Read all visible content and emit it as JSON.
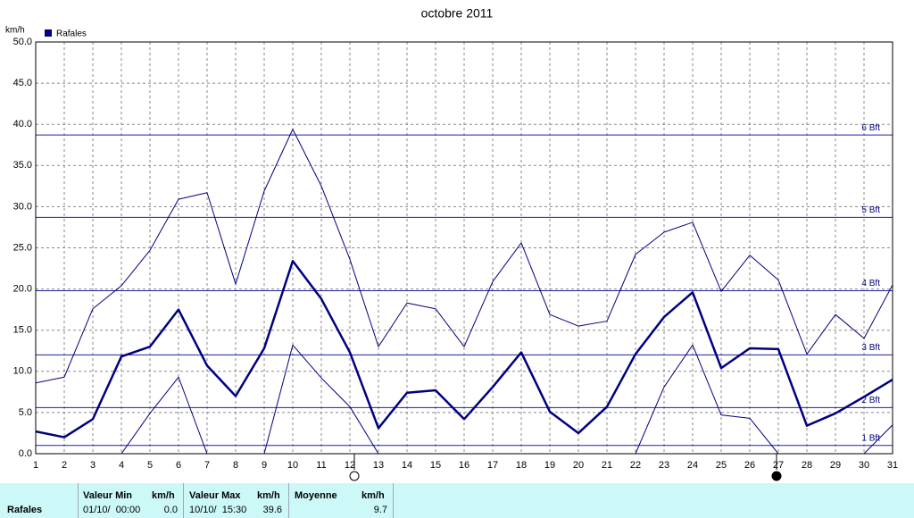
{
  "chart_data": {
    "type": "line",
    "title": "octobre 2011",
    "y_label": "km/h",
    "x": [
      1,
      2,
      3,
      4,
      5,
      6,
      7,
      8,
      9,
      10,
      11,
      12,
      13,
      14,
      15,
      16,
      17,
      18,
      19,
      20,
      21,
      22,
      23,
      24,
      25,
      26,
      27,
      28,
      29,
      30,
      31
    ],
    "xlim": [
      1,
      31
    ],
    "xticks": [
      1,
      2,
      3,
      4,
      5,
      6,
      7,
      8,
      9,
      10,
      11,
      12,
      13,
      14,
      15,
      16,
      17,
      18,
      19,
      20,
      21,
      22,
      23,
      24,
      25,
      26,
      27,
      28,
      29,
      30,
      31
    ],
    "ylim": [
      0,
      50
    ],
    "yticks": [
      {
        "value": 0,
        "label": "0.0"
      },
      {
        "value": 5,
        "label": "5.0"
      },
      {
        "value": 10,
        "label": "10.0"
      },
      {
        "value": 15,
        "label": "15.0"
      },
      {
        "value": 20,
        "label": "20.0"
      },
      {
        "value": 25,
        "label": "25.0"
      },
      {
        "value": 30,
        "label": "30.0"
      },
      {
        "value": 35,
        "label": "35.0"
      },
      {
        "value": 40,
        "label": "40.0"
      },
      {
        "value": 45,
        "label": "45.0"
      },
      {
        "value": 50,
        "label": "50.0"
      }
    ],
    "grid": true,
    "legend": "top-left",
    "series": [
      {
        "name": "Rafales",
        "color": "#000080",
        "width": 2.5,
        "values": [
          2.7,
          2.0,
          4.2,
          11.8,
          13.0,
          17.5,
          10.7,
          7.0,
          12.8,
          23.4,
          18.8,
          12.3,
          3.1,
          7.4,
          7.7,
          4.2,
          8.1,
          12.3,
          5.1,
          2.5,
          5.7,
          12.1,
          16.6,
          19.6,
          10.4,
          12.8,
          12.7,
          3.4,
          4.9,
          6.9,
          9.0
        ]
      },
      {
        "color": "#000080",
        "width": 1,
        "values": [
          8.6,
          9.3,
          17.6,
          20.4,
          24.7,
          30.9,
          31.7,
          20.6,
          31.9,
          39.4,
          32.5,
          23.6,
          13.0,
          18.3,
          17.6,
          13.0,
          20.9,
          25.6,
          16.9,
          15.5,
          16.1,
          24.2,
          26.9,
          28.1,
          19.7,
          24.1,
          21.1,
          12.1,
          16.9,
          14.0,
          20.5
        ]
      },
      {
        "color": "#000080",
        "width": 1,
        "values": [
          0,
          0,
          0,
          0,
          4.9,
          9.3,
          0,
          0,
          0,
          13.2,
          9.2,
          5.7,
          0,
          0,
          0,
          0,
          0,
          0,
          0,
          0,
          0,
          0,
          8.1,
          13.2,
          4.7,
          4.3,
          0,
          0,
          0,
          0,
          3.5
        ]
      }
    ],
    "reference_lines": [
      {
        "value": 1,
        "label": "1 Bft"
      },
      {
        "value": 5.6,
        "label": "2 Bft"
      },
      {
        "value": 12,
        "label": "3 Bft"
      },
      {
        "value": 19.8,
        "label": "4 Bft"
      },
      {
        "value": 28.7,
        "label": "5 Bft"
      },
      {
        "value": 38.7,
        "label": "6 Bft"
      }
    ]
  },
  "summary": {
    "row_label": "Rafales",
    "min_header": "Valeur Min",
    "min_unit": "km/h",
    "min_date": "01/10/  00:00",
    "min_value": "0.0",
    "max_header": "Valeur Max",
    "max_unit": "km/h",
    "max_date": "10/10/  15:30",
    "max_value": "39.6",
    "mean_header": "Moyenne",
    "mean_unit": "km/h",
    "mean_value": "9.7"
  }
}
